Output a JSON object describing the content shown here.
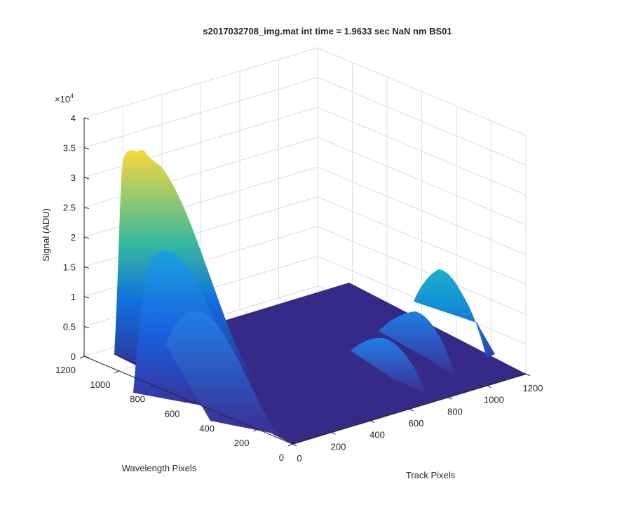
{
  "chart_data": {
    "type": "surface3d",
    "title": "s2017032708_img.mat int time = 1.9633 sec  NaN nm BS01",
    "xlabel": "Track Pixels",
    "ylabel": "Wavelength Pixels",
    "zlabel": "Signal (ADU)",
    "z_multiplier": "×10",
    "z_exponent": "4",
    "xlim": [
      0,
      1200
    ],
    "ylim": [
      0,
      1200
    ],
    "zlim": [
      0,
      40000
    ],
    "x_ticks": [
      "0",
      "200",
      "400",
      "600",
      "800",
      "1000",
      "1200"
    ],
    "y_ticks": [
      "0",
      "200",
      "400",
      "600",
      "800",
      "1000",
      "1200"
    ],
    "z_ticks": [
      "0",
      "0.5",
      "1",
      "1.5",
      "2",
      "2.5",
      "3",
      "3.5",
      "4"
    ],
    "grid": true,
    "colormap": "parula",
    "colors": {
      "low": "#352a87",
      "mid": "#0f9fd8",
      "teal": "#38b99e",
      "high": "#f9fb0e",
      "grid": "#dcdcdc",
      "axis": "#262626"
    },
    "peaks": [
      {
        "track_px": 0,
        "wavelength_px": 1000,
        "signal": 35000
      },
      {
        "track_px": 0,
        "wavelength_px": 700,
        "signal": 30000
      },
      {
        "track_px": 0,
        "wavelength_px": 430,
        "signal": 18000
      },
      {
        "track_px": 1000,
        "wavelength_px": 870,
        "signal": 15000
      },
      {
        "track_px": 1000,
        "wavelength_px": 650,
        "signal": 9000
      },
      {
        "track_px": 1000,
        "wavelength_px": 450,
        "signal": 7000
      }
    ]
  }
}
